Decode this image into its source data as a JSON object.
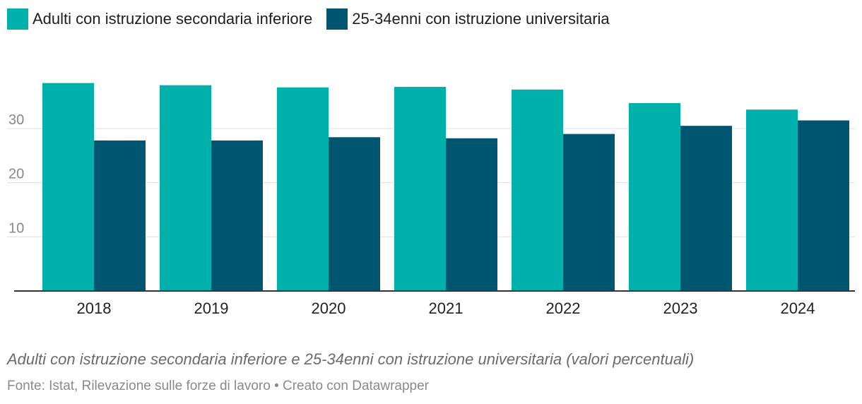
{
  "colors": {
    "series1": "#00b0aa",
    "series2": "#005570",
    "grid": "#e0e0e0",
    "axis": "#333333"
  },
  "chart_data": {
    "type": "bar",
    "categories": [
      "2018",
      "2019",
      "2020",
      "2021",
      "2022",
      "2023",
      "2024"
    ],
    "series": [
      {
        "name": "Adulti con istruzione secondaria inferiore",
        "values": [
          38.4,
          38.0,
          37.6,
          37.7,
          37.2,
          34.7,
          33.5
        ]
      },
      {
        "name": "25-34enni con istruzione universitaria",
        "values": [
          27.8,
          27.8,
          28.4,
          28.2,
          29.0,
          30.5,
          31.5
        ]
      }
    ],
    "yticks": [
      10,
      20,
      30
    ],
    "ylim": [
      0,
      42
    ],
    "xlabel": "",
    "ylabel": "",
    "legend_position": "top-left"
  },
  "caption": "Adulti con istruzione secondaria inferiore e 25-34enni con istruzione universitaria (valori percentuali)",
  "source": "Fonte: Istat, Rilevazione sulle forze di lavoro • Creato con Datawrapper"
}
